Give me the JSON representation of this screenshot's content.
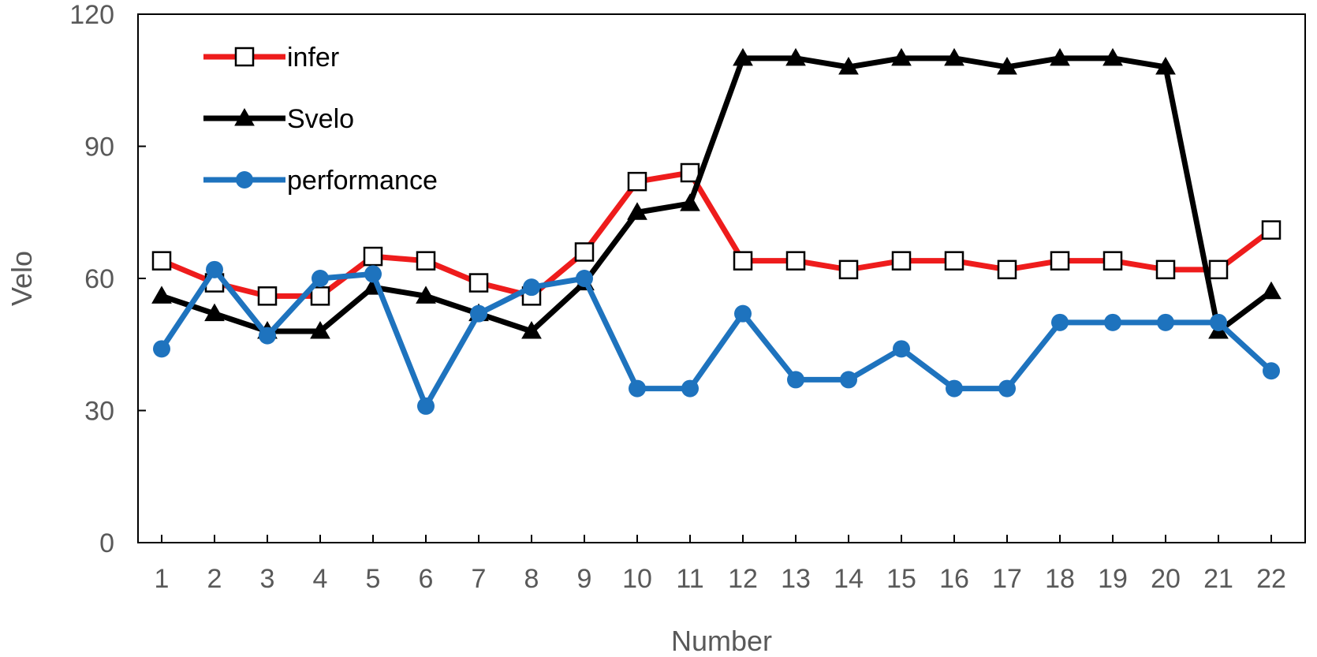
{
  "chart_data": {
    "type": "line",
    "xlabel": "Number",
    "ylabel": "Velo",
    "ylim": [
      0,
      120
    ],
    "yticks": [
      0,
      30,
      60,
      90,
      120
    ],
    "x": [
      1,
      2,
      3,
      4,
      5,
      6,
      7,
      8,
      9,
      10,
      11,
      12,
      13,
      14,
      15,
      16,
      17,
      18,
      19,
      20,
      21,
      22
    ],
    "legend_position": "top-left",
    "grid": false,
    "series": [
      {
        "name": "infer",
        "color": "#ee1c1c",
        "marker": "open-square",
        "values": [
          64,
          59,
          56,
          56,
          65,
          64,
          59,
          56,
          66,
          82,
          84,
          64,
          64,
          62,
          64,
          64,
          62,
          64,
          64,
          62,
          62,
          71
        ]
      },
      {
        "name": "Svelo",
        "color": "#000000",
        "marker": "triangle",
        "values": [
          56,
          52,
          48,
          48,
          58,
          56,
          52,
          48,
          59,
          75,
          77,
          110,
          110,
          108,
          110,
          110,
          108,
          110,
          110,
          108,
          48,
          57
        ]
      },
      {
        "name": "performance",
        "color": "#1e73be",
        "marker": "circle",
        "values": [
          44,
          62,
          47,
          60,
          61,
          31,
          52,
          58,
          60,
          35,
          35,
          52,
          37,
          37,
          44,
          35,
          35,
          50,
          50,
          50,
          50,
          39
        ]
      }
    ]
  }
}
